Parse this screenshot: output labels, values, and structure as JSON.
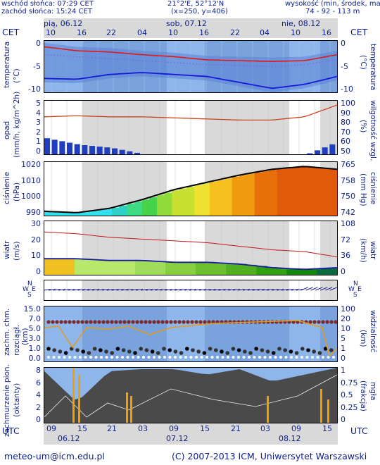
{
  "header": {
    "sunrise": "wschód słońca: 07:29 CET",
    "sunset": "zachód słońca: 15:24 CET",
    "coords": "21°2'E, 52°12'N",
    "grid": "(x=250, y=406)",
    "elevation_label": "wysokość (min, środek, max)",
    "elevation_values": "74 - 92 - 113 m"
  },
  "time_axis": {
    "tz_left": "CET",
    "tz_right": "CET",
    "days_top": [
      "pią, 06.12",
      "sob, 07.12",
      "nie, 08.12"
    ],
    "hours_top": [
      "10",
      "16",
      "22",
      "04",
      "10",
      "16",
      "22",
      "04",
      "10",
      "16"
    ],
    "utc_left": "UTC",
    "utc_right": "UTC",
    "hours_bottom": [
      "09",
      "15",
      "21",
      "03",
      "09",
      "15",
      "21",
      "03",
      "09",
      "15"
    ],
    "days_bottom": [
      "06.12",
      "07.12",
      "08.12"
    ]
  },
  "panels": {
    "temperature": {
      "left_label": "temperatura",
      "left_unit": "(°C)",
      "right_label": "temperatura",
      "right_unit": "(°C)",
      "left_ticks": [
        "0",
        "-5",
        "-10"
      ],
      "right_ticks": [
        "0",
        "-5",
        "-10"
      ]
    },
    "precip": {
      "left_label": "opad",
      "left_unit": "(mm/h, kg/m^2h)",
      "right_label": "wilgotność wzgl.",
      "right_unit": "(%)",
      "left_ticks": [
        "5",
        "4",
        "3",
        "2",
        "1",
        "0"
      ],
      "right_ticks": [
        "100",
        "90",
        "80",
        "70",
        "60",
        "50"
      ]
    },
    "pressure": {
      "left_label": "ciśnienie",
      "left_unit": "(hPa)",
      "right_label": "ciśnienie",
      "right_unit": "(mm Hg)",
      "left_ticks": [
        "1020",
        "1010",
        "1000",
        "990"
      ],
      "right_ticks": [
        "765",
        "758",
        "750",
        "742"
      ]
    },
    "wind": {
      "left_label": "wiatr",
      "left_unit": "(m/s)",
      "right_label": "wiatr",
      "right_unit": "(km/h)",
      "left_ticks": [
        "30",
        "20",
        "10",
        "0"
      ],
      "right_ticks": [
        "108",
        "72",
        "36",
        "0"
      ]
    },
    "wind_dir": {
      "left_compass": "WNSE",
      "right_compass": "WNSE"
    },
    "clouds": {
      "left_label": "zachm. chm.",
      "left_label2": "rozciągł.",
      "left_unit": "(km)",
      "right_label": "widzialność",
      "right_unit": "(km)",
      "left_ticks": [
        "15.0",
        "7.0",
        "5.0",
        "3.0",
        "1.0",
        "0.0"
      ],
      "right_ticks": [
        "100",
        "20",
        "10",
        "5",
        "1",
        "0"
      ]
    },
    "cover": {
      "left_label": "zachmurzenie pion.",
      "left_unit": "(oktanty)",
      "right_label": "mgła",
      "right_unit": "(frakcja)",
      "left_ticks": [
        "8",
        "6",
        "4",
        "2",
        "0"
      ],
      "right_ticks": [
        "1",
        "0.75",
        "0.5",
        "0.25",
        "0"
      ]
    }
  },
  "chart_data": [
    {
      "type": "line",
      "name": "temperature",
      "x": [
        "10",
        "16",
        "22",
        "04",
        "10",
        "16",
        "22",
        "04",
        "10",
        "16"
      ],
      "series": [
        {
          "name": "max",
          "values": [
            -0.5,
            -1.5,
            -1.8,
            -2.5,
            -3.0,
            -3.8,
            -4.0,
            -4.2,
            -4.0,
            -2.5
          ]
        },
        {
          "name": "mid",
          "values": [
            -2.5,
            -3.0,
            -3.5,
            -4.0,
            -4.5,
            -5.0,
            -5.2,
            -5.5,
            -5.0,
            -3.8
          ]
        },
        {
          "name": "min",
          "values": [
            -8.5,
            -8.7,
            -7.5,
            -7.0,
            -7.5,
            -8.0,
            -9.5,
            -11.0,
            -10.0,
            -8.0
          ]
        }
      ],
      "ylim": [
        -12,
        1
      ]
    },
    {
      "type": "bar",
      "name": "precip_humidity",
      "x": [
        "10",
        "16",
        "22",
        "04",
        "10",
        "16",
        "22",
        "04",
        "10",
        "16"
      ],
      "series": [
        {
          "name": "precip",
          "values": [
            0.5,
            0.3,
            0.2,
            0.0,
            0.0,
            0.0,
            0.0,
            0.0,
            0.0,
            0.4
          ]
        },
        {
          "name": "humidity",
          "values": [
            85,
            86,
            85,
            85,
            84,
            83,
            82,
            82,
            85,
            96
          ]
        }
      ]
    },
    {
      "type": "line",
      "name": "pressure",
      "x": [
        "10",
        "16",
        "22",
        "04",
        "10",
        "16",
        "22",
        "04",
        "10",
        "16"
      ],
      "values": [
        991,
        990,
        993,
        999,
        1006,
        1011,
        1016,
        1020,
        1022,
        1020
      ],
      "ylim": [
        988,
        1025
      ]
    },
    {
      "type": "line",
      "name": "wind",
      "x": [
        "10",
        "16",
        "22",
        "04",
        "10",
        "16",
        "22",
        "04",
        "10",
        "16"
      ],
      "series": [
        {
          "name": "gust",
          "values": [
            24,
            23,
            21,
            20,
            19,
            18,
            16,
            14,
            13,
            10
          ]
        },
        {
          "name": "speed",
          "values": [
            9,
            9,
            8,
            8,
            7,
            7,
            6,
            4,
            3,
            4
          ]
        }
      ],
      "ylim": [
        0,
        30
      ]
    },
    {
      "type": "scatter",
      "name": "cloud_visibility",
      "x": [
        "10",
        "16",
        "22",
        "04",
        "10",
        "16",
        "22",
        "04",
        "10",
        "16"
      ],
      "values": [
        1.0,
        3.0,
        6.9,
        6.9,
        6.9,
        7.0,
        6.9,
        6.9,
        6.9,
        3.0
      ]
    },
    {
      "type": "area",
      "name": "cloud_cover",
      "x": [
        "09",
        "15",
        "21",
        "03",
        "09",
        "15",
        "21",
        "03",
        "09",
        "15"
      ],
      "values": [
        7.5,
        3.0,
        7.5,
        7.8,
        7.8,
        7.0,
        7.8,
        6.0,
        7.0,
        8.0
      ],
      "ylim": [
        0,
        8
      ]
    }
  ]
}
